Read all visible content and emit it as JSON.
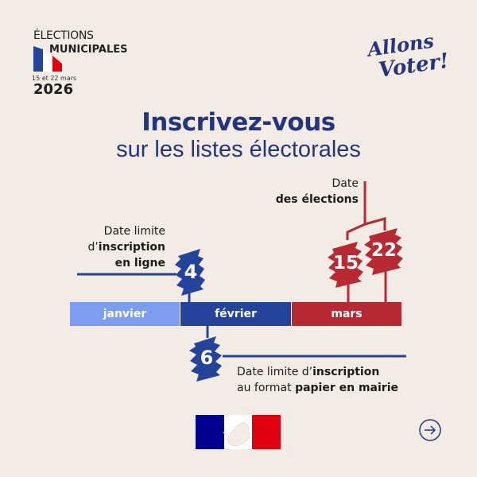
{
  "header": {
    "elections": "ÉLECTIONS",
    "municipales": "MUNICIPALES",
    "dates": "15 et 22 mars",
    "year": "2026",
    "slogan_line1": "Allons",
    "slogan_line2": "Voter!"
  },
  "title": "Inscrivez-vous",
  "subtitle": "sur les listes électorales",
  "timeline": {
    "months": [
      {
        "label": "janvier",
        "color": "#7b9ef0"
      },
      {
        "label": "février",
        "color": "#24439a"
      },
      {
        "label": "mars",
        "color": "#b72a33"
      }
    ],
    "online_deadline": {
      "day": "4",
      "l1": "Date limite",
      "l2a": "d’",
      "l2b": "inscription",
      "l3": "en ligne"
    },
    "paper_deadline": {
      "day": "6",
      "l1a": "Date limite d’",
      "l1b": "inscription",
      "l2a": "au format ",
      "l2b": "papier en mairie"
    },
    "elections": {
      "days": [
        "15",
        "22"
      ],
      "l1": "Date",
      "l2": "des élections"
    }
  },
  "colors": {
    "blue": "#24439a",
    "red": "#b72a33",
    "light_blue": "#7b9ef0",
    "background": "#f3ece5"
  },
  "footer": {
    "logo": "Marianne - République Française",
    "next_icon": "arrow-right-icon"
  }
}
